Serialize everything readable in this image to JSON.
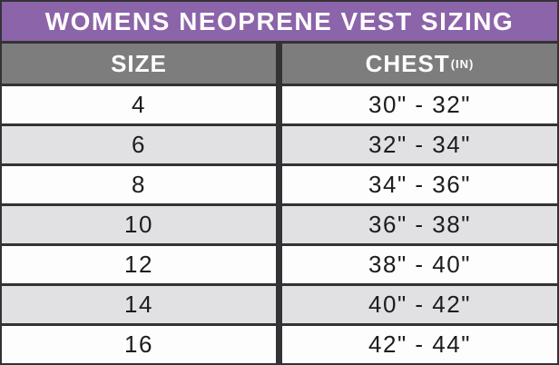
{
  "title": "WOMENS NEOPRENE VEST SIZING",
  "table": {
    "columns": [
      {
        "label": "SIZE",
        "superscript": ""
      },
      {
        "label": "CHEST",
        "superscript": "(IN)"
      }
    ],
    "rows": [
      {
        "size": "4",
        "chest": "30\" - 32\""
      },
      {
        "size": "6",
        "chest": "32\" - 34\""
      },
      {
        "size": "8",
        "chest": "34\" - 36\""
      },
      {
        "size": "10",
        "chest": "36\" - 38\""
      },
      {
        "size": "12",
        "chest": "38\" - 40\""
      },
      {
        "size": "14",
        "chest": "40\" - 42\""
      },
      {
        "size": "16",
        "chest": "42\" - 44\""
      }
    ]
  },
  "colors": {
    "title_bg": "#8c64a9",
    "header_bg": "#7d7d7d",
    "row_bg": "#fdfdfd",
    "row_alt_bg": "#e1e1e3",
    "rule": "#333336",
    "header_text": "#ffffff",
    "cell_text": "#1c1c1e"
  }
}
